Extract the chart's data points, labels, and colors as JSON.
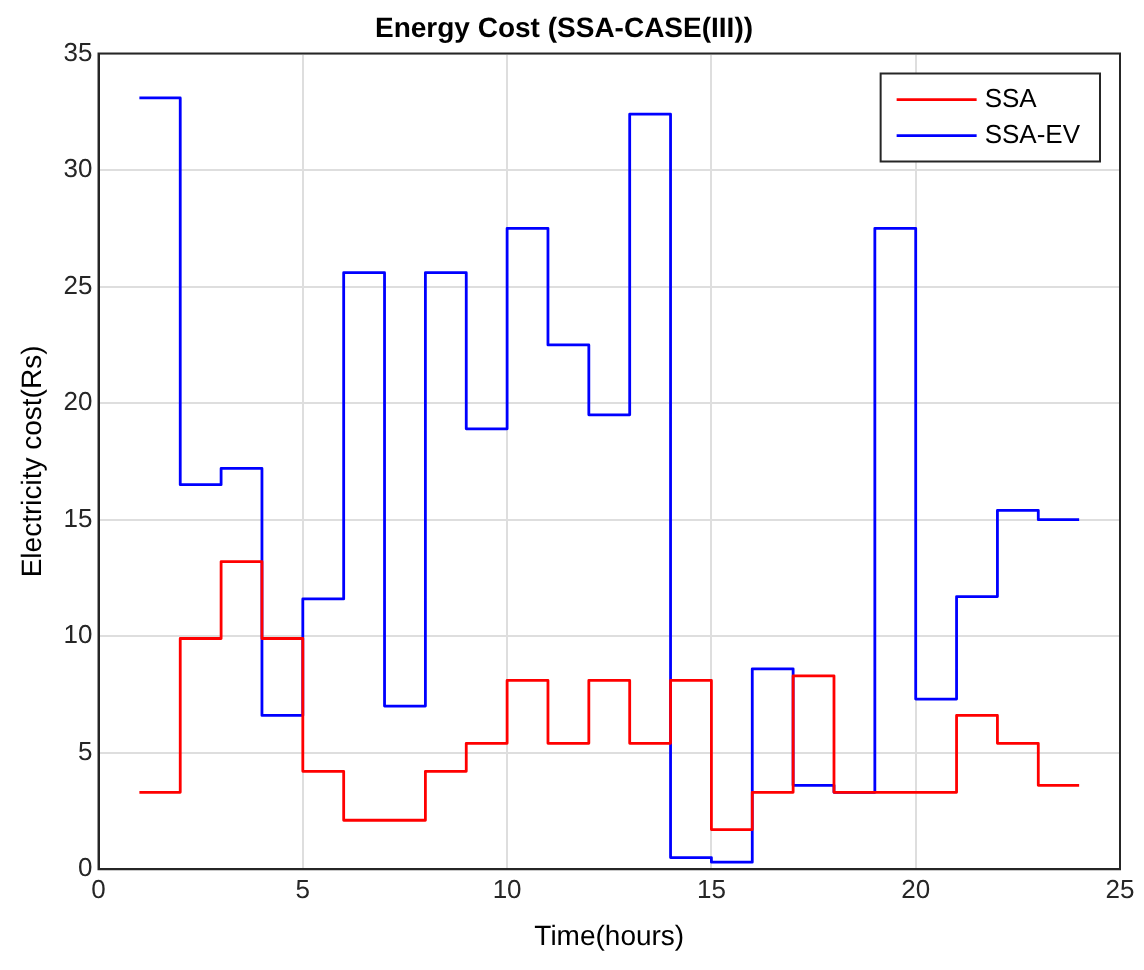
{
  "chart_data": {
    "type": "step",
    "title": "Energy Cost (SSA-CASE(III))",
    "xlabel": "Time(hours)",
    "ylabel": "Electricity cost(Rs)",
    "x": [
      1,
      2,
      3,
      4,
      5,
      6,
      7,
      8,
      9,
      10,
      11,
      12,
      13,
      14,
      15,
      16,
      17,
      18,
      19,
      20,
      21,
      22,
      23,
      24
    ],
    "series": [
      {
        "name": "SSA",
        "color": "#ff0000",
        "values": [
          3.3,
          9.9,
          13.2,
          9.9,
          4.2,
          2.1,
          2.1,
          4.2,
          5.4,
          8.1,
          5.4,
          8.1,
          5.4,
          8.1,
          1.7,
          3.3,
          8.3,
          3.3,
          3.3,
          3.3,
          6.6,
          5.4,
          3.6,
          3.6
        ]
      },
      {
        "name": "SSA-EV",
        "color": "#0000ff",
        "values": [
          33.1,
          16.5,
          17.2,
          6.6,
          11.6,
          25.6,
          7.0,
          25.6,
          18.9,
          27.5,
          22.5,
          19.5,
          32.4,
          0.5,
          0.3,
          8.6,
          3.6,
          3.3,
          27.5,
          7.3,
          11.7,
          15.4,
          15.0,
          15.0
        ]
      }
    ],
    "xlim": [
      0,
      25
    ],
    "xticks": [
      0,
      5,
      10,
      15,
      20,
      25
    ],
    "ylim": [
      0,
      35
    ],
    "yticks": [
      0,
      5,
      10,
      15,
      20,
      25,
      30,
      35
    ],
    "grid": true,
    "legend": "top right",
    "marker": "none",
    "line_style": "solid"
  }
}
